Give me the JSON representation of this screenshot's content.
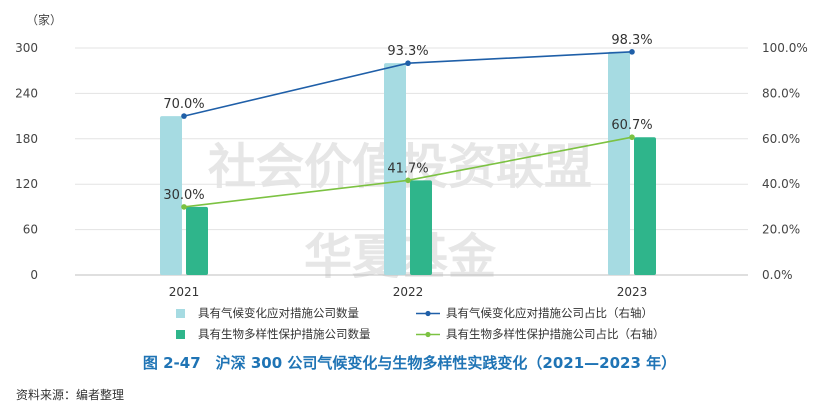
{
  "chart_data": {
    "type": "bar",
    "categories": [
      "2021",
      "2022",
      "2023"
    ],
    "series": [
      {
        "name": "具有气候变化应对措施公司数量",
        "type": "bar",
        "axis": "left",
        "values": [
          210,
          280,
          295
        ],
        "color": "#a6dbe2"
      },
      {
        "name": "具有生物多样性保护措施公司数量",
        "type": "bar",
        "axis": "left",
        "values": [
          90,
          125,
          182
        ],
        "color": "#2fb58b"
      },
      {
        "name": "具有气候变化应对措施公司占比（右轴）",
        "type": "line",
        "axis": "right",
        "values": [
          70.0,
          93.3,
          98.3
        ],
        "labels": [
          "70.0%",
          "93.3%",
          "98.3%"
        ],
        "color": "#1f5fa8"
      },
      {
        "name": "具有生物多样性保护措施公司占比（右轴）",
        "type": "line",
        "axis": "right",
        "values": [
          30.0,
          41.7,
          60.7
        ],
        "labels": [
          "30.0%",
          "41.7%",
          "60.7%"
        ],
        "color": "#7cc242"
      }
    ],
    "ylabel": "（家）",
    "ylim": [
      0,
      300
    ],
    "yticks": [
      "0",
      "60",
      "120",
      "180",
      "240",
      "300"
    ],
    "y2lim": [
      0,
      100
    ],
    "y2ticks": [
      "0.0%",
      "20.0%",
      "40.0%",
      "60.0%",
      "80.0%",
      "100.0%"
    ],
    "grid": true,
    "legend_position": "bottom",
    "watermark_lines": [
      "社会价值投资联盟",
      "华夏基金"
    ]
  },
  "caption": "图 2-47　沪深 300 公司气候变化与生物多样性实践变化（2021—2023 年）",
  "source": "资料来源：编者整理"
}
